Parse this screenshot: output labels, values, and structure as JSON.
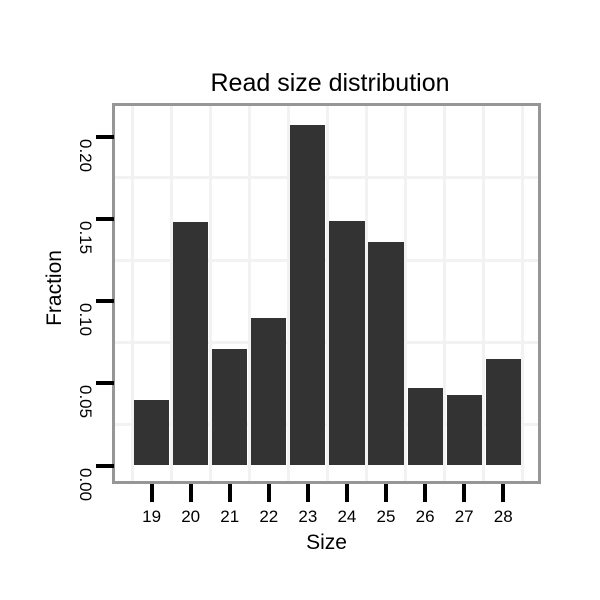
{
  "chart_data": {
    "type": "bar",
    "title": "Read size distribution",
    "xlabel": "Size",
    "ylabel": "Fraction",
    "categories": [
      "19",
      "20",
      "21",
      "22",
      "23",
      "24",
      "25",
      "26",
      "27",
      "28"
    ],
    "values": [
      0.04,
      0.148,
      0.071,
      0.09,
      0.207,
      0.149,
      0.136,
      0.047,
      0.043,
      0.065
    ],
    "yticks": [
      0,
      0.05,
      0.1,
      0.15,
      0.2
    ],
    "ytick_labels": [
      "0.00",
      "0.05",
      "0.10",
      "0.15",
      "0.20"
    ],
    "ylim": [
      -0.009,
      0.219
    ],
    "bar_width_fraction": 0.9,
    "legend": "none",
    "grid": {
      "horizontal": "minor lines midway between y ticks",
      "vertical": "lines at category boundaries"
    },
    "colors": {
      "bar": "#333333",
      "background": "#ffffff",
      "panel_background": "#ffffff",
      "panel_border": "#969696",
      "gridline": "#f2f2f2",
      "tick": "#000000",
      "text": "#000000"
    }
  }
}
